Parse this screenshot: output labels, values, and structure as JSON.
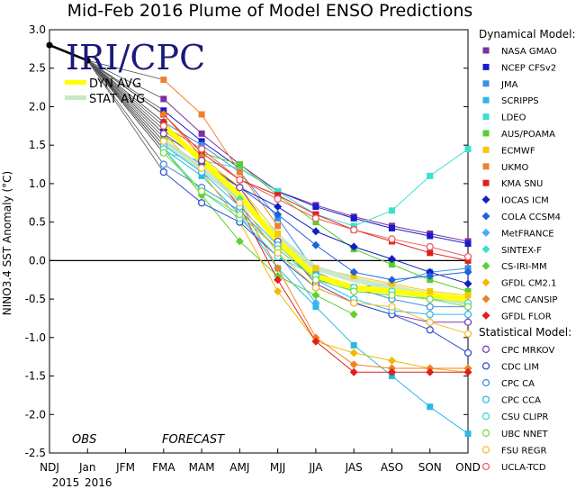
{
  "chart_data": {
    "type": "line",
    "title": "Mid-Feb 2016 Plume of Model ENSO Predictions",
    "ylabel": "NINO3.4 SST Anomaly (°C)",
    "xlabel": "",
    "ylim": [
      -2.5,
      3.0
    ],
    "yticks": [
      "3.0",
      "2.5",
      "2.0",
      "1.5",
      "1.0",
      "0.5",
      "0.0",
      "-0.5",
      "-1.0",
      "-1.5",
      "-2.0",
      "-2.5"
    ],
    "categories": [
      "NDJ",
      "Jan",
      "JFM",
      "FMA",
      "MAM",
      "AMJ",
      "MJJ",
      "JJA",
      "JAS",
      "ASO",
      "SON",
      "OND"
    ],
    "year_labels": [
      "2015",
      "2016"
    ],
    "annotations": {
      "obs": "OBS",
      "forecast": "FORECAST"
    },
    "logo": "IRI/CPC",
    "avg_legend": {
      "dyn": "DYN AVG",
      "stat": "STAT AVG"
    },
    "observed": [
      2.8,
      2.6
    ],
    "legend_groups": {
      "dynamical": "Dynamical Model:",
      "statistical": "Statistical Model:"
    },
    "dyn_avg": [
      null,
      null,
      null,
      1.75,
      1.3,
      0.85,
      0.25,
      -0.2,
      -0.35,
      -0.4,
      -0.45,
      -0.5
    ],
    "stat_avg": [
      null,
      null,
      null,
      1.55,
      1.2,
      0.8,
      0.3,
      -0.1,
      -0.25,
      -0.35,
      -0.45,
      -0.55
    ],
    "series": [
      {
        "name": "NASA GMAO",
        "group": "dyn",
        "color": "#7b2fa3",
        "marker": "square",
        "values": [
          null,
          null,
          null,
          2.1,
          1.65,
          1.25,
          0.9,
          0.72,
          0.57,
          0.45,
          0.35,
          0.25
        ]
      },
      {
        "name": "NCEP CFSv2",
        "group": "dyn",
        "color": "#1a1acc",
        "marker": "square",
        "values": [
          null,
          null,
          null,
          1.95,
          1.55,
          1.2,
          0.9,
          0.7,
          0.55,
          0.42,
          0.32,
          0.22
        ]
      },
      {
        "name": "JMA",
        "group": "dyn",
        "color": "#3a8fe0",
        "marker": "square",
        "values": [
          null,
          null,
          null,
          1.8,
          1.5,
          1.15,
          0.55,
          -0.15,
          -0.35,
          -0.3,
          -0.15,
          -0.1
        ]
      },
      {
        "name": "SCRIPPS",
        "group": "dyn",
        "color": "#2ab8e8",
        "marker": "square",
        "values": [
          null,
          null,
          null,
          1.45,
          1.1,
          0.6,
          -0.1,
          -0.6,
          -1.1,
          -1.5,
          -1.9,
          -2.25
        ]
      },
      {
        "name": "LDEO",
        "group": "dyn",
        "color": "#3ae0d0",
        "marker": "square",
        "values": [
          null,
          null,
          null,
          1.4,
          1.3,
          1.2,
          0.9,
          0.6,
          0.45,
          0.65,
          1.1,
          1.45
        ]
      },
      {
        "name": "AUS/POAMA",
        "group": "dyn",
        "color": "#55d030",
        "marker": "square",
        "values": [
          null,
          null,
          null,
          1.6,
          1.4,
          1.25,
          0.85,
          0.5,
          0.15,
          -0.05,
          -0.25,
          -0.4
        ]
      },
      {
        "name": "ECMWF",
        "group": "dyn",
        "color": "#f5c800",
        "marker": "square",
        "values": [
          null,
          null,
          null,
          1.9,
          1.35,
          0.95,
          0.35,
          -0.1,
          -0.2,
          -0.3,
          -0.4,
          -0.45
        ]
      },
      {
        "name": "UKMO",
        "group": "dyn",
        "color": "#f08030",
        "marker": "square",
        "values": [
          null,
          null,
          null,
          2.35,
          1.9,
          1.15,
          0.45,
          null,
          null,
          null,
          null,
          null
        ]
      },
      {
        "name": "KMA SNU",
        "group": "dyn",
        "color": "#e02020",
        "marker": "square",
        "values": [
          null,
          null,
          null,
          1.9,
          1.4,
          1.05,
          0.85,
          0.6,
          0.4,
          0.25,
          0.1,
          0.0
        ]
      },
      {
        "name": "IOCAS ICM",
        "group": "dyn",
        "color": "#1020c0",
        "marker": "diamond",
        "values": [
          null,
          null,
          null,
          1.7,
          1.3,
          0.95,
          0.7,
          0.38,
          0.18,
          0.02,
          -0.15,
          -0.3
        ]
      },
      {
        "name": "COLA CCSM4",
        "group": "dyn",
        "color": "#2060e0",
        "marker": "diamond",
        "values": [
          null,
          null,
          null,
          1.55,
          1.25,
          0.95,
          0.6,
          0.2,
          -0.15,
          -0.25,
          -0.2,
          -0.15
        ]
      },
      {
        "name": "MetFRANCE",
        "group": "dyn",
        "color": "#40b0f0",
        "marker": "diamond",
        "values": [
          null,
          null,
          null,
          1.65,
          1.3,
          0.75,
          0.1,
          -0.55,
          null,
          null,
          null,
          null
        ]
      },
      {
        "name": "SINTEX-F",
        "group": "dyn",
        "color": "#40e0c8",
        "marker": "diamond",
        "values": [
          null,
          null,
          null,
          1.5,
          1.15,
          0.8,
          0.25,
          -0.2,
          -0.4,
          -0.45,
          -0.5,
          -0.55
        ]
      },
      {
        "name": "CS-IRI-MM",
        "group": "dyn",
        "color": "#60d030",
        "marker": "diamond",
        "values": [
          null,
          null,
          null,
          1.45,
          0.85,
          0.25,
          -0.2,
          -0.45,
          -0.7,
          null,
          null,
          null
        ]
      },
      {
        "name": "GFDL CM2.1",
        "group": "dyn",
        "color": "#f5b800",
        "marker": "diamond",
        "values": [
          null,
          null,
          null,
          1.65,
          1.15,
          0.5,
          -0.4,
          -1.05,
          -1.2,
          -1.3,
          -1.4,
          -1.45
        ]
      },
      {
        "name": "CMC CANSIP",
        "group": "dyn",
        "color": "#f08020",
        "marker": "diamond",
        "values": [
          null,
          null,
          null,
          1.9,
          1.35,
          0.75,
          -0.1,
          -1.0,
          -1.35,
          -1.4,
          -1.4,
          -1.4
        ]
      },
      {
        "name": "GFDL FLOR",
        "group": "dyn",
        "color": "#e02020",
        "marker": "diamond",
        "values": [
          null,
          null,
          null,
          1.8,
          1.3,
          0.7,
          -0.25,
          -1.05,
          -1.45,
          -1.45,
          -1.45,
          -1.45
        ]
      },
      {
        "name": "CPC MRKOV",
        "group": "stat",
        "color": "#7b3fb0",
        "marker": "circle",
        "values": [
          null,
          null,
          null,
          1.65,
          1.3,
          0.95,
          0.25,
          -0.3,
          -0.55,
          -0.7,
          -0.8,
          -0.8
        ]
      },
      {
        "name": "CDC LIM",
        "group": "stat",
        "color": "#3050d0",
        "marker": "circle",
        "values": [
          null,
          null,
          null,
          1.15,
          0.75,
          0.5,
          0.05,
          -0.35,
          -0.55,
          -0.7,
          -0.9,
          -1.2
        ]
      },
      {
        "name": "CPC CA",
        "group": "stat",
        "color": "#4090e0",
        "marker": "circle",
        "values": [
          null,
          null,
          null,
          1.25,
          0.95,
          0.65,
          0.15,
          -0.25,
          -0.35,
          -0.5,
          -0.6,
          -0.6
        ]
      },
      {
        "name": "CPC CCA",
        "group": "stat",
        "color": "#30b8f0",
        "marker": "circle",
        "values": [
          null,
          null,
          null,
          1.5,
          1.15,
          0.7,
          0.2,
          -0.25,
          -0.5,
          -0.65,
          -0.7,
          -0.7
        ]
      },
      {
        "name": "CSU CLIPR",
        "group": "stat",
        "color": "#40d8d0",
        "marker": "circle",
        "values": [
          null,
          null,
          null,
          1.45,
          0.9,
          0.55,
          0.05,
          -0.2,
          -0.35,
          -0.4,
          -0.5,
          -0.55
        ]
      },
      {
        "name": "UBC NNET",
        "group": "stat",
        "color": "#80d840",
        "marker": "circle",
        "values": [
          null,
          null,
          null,
          1.4,
          0.9,
          0.6,
          0.15,
          -0.25,
          -0.4,
          -0.45,
          -0.5,
          -0.6
        ]
      },
      {
        "name": "FSU REGR",
        "group": "stat",
        "color": "#f5c030",
        "marker": "circle",
        "values": [
          null,
          null,
          null,
          1.55,
          1.2,
          0.75,
          0.1,
          -0.35,
          -0.55,
          -0.6,
          -0.8,
          -0.95
        ]
      },
      {
        "name": "UCLA-TCD",
        "group": "stat",
        "color": "#f06060",
        "marker": "circle",
        "values": [
          null,
          null,
          null,
          1.75,
          1.45,
          1.05,
          0.8,
          0.55,
          0.4,
          0.28,
          0.18,
          0.05
        ]
      }
    ]
  }
}
